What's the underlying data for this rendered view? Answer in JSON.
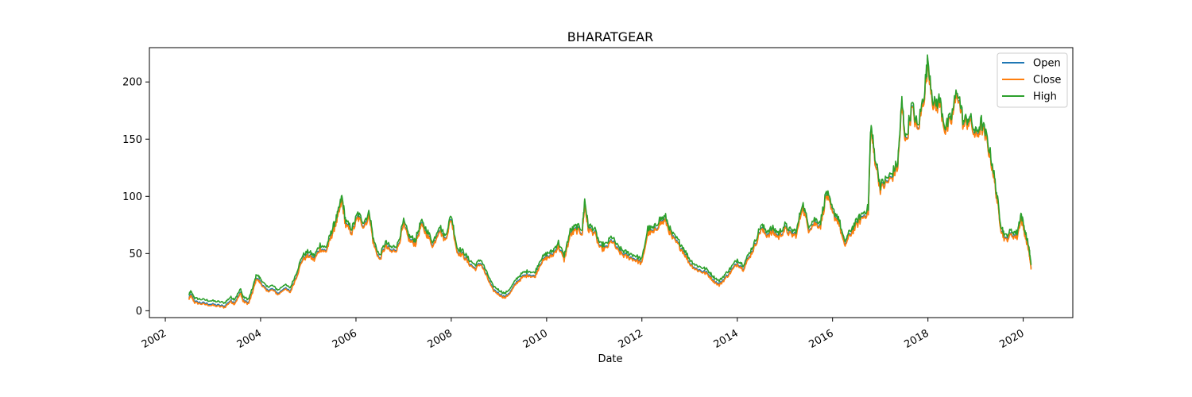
{
  "chart_data": {
    "type": "line",
    "title": "BHARATGEAR",
    "xlabel": "Date",
    "ylabel": "",
    "xlim": [
      "2001-09-01",
      "2021-01-15"
    ],
    "ylim": [
      -6,
      230
    ],
    "x_ticks": [
      "2002",
      "2004",
      "2006",
      "2008",
      "2010",
      "2012",
      "2014",
      "2016",
      "2018",
      "2020"
    ],
    "y_ticks": [
      0,
      50,
      100,
      150,
      200
    ],
    "grid": false,
    "legend_position": "top-right",
    "colors": {
      "Open": "#1f77b4",
      "Close": "#ff7f0e",
      "High": "#2ca02c"
    },
    "series": [
      {
        "name": "High",
        "points": [
          [
            "2002-07-01",
            14
          ],
          [
            "2002-07-15",
            17
          ],
          [
            "2002-08-15",
            11
          ],
          [
            "2002-10-01",
            10
          ],
          [
            "2002-12-01",
            9
          ],
          [
            "2003-02-01",
            8
          ],
          [
            "2003-04-01",
            7
          ],
          [
            "2003-05-15",
            12
          ],
          [
            "2003-06-15",
            10
          ],
          [
            "2003-08-01",
            19
          ],
          [
            "2003-08-20",
            12
          ],
          [
            "2003-10-01",
            10
          ],
          [
            "2003-11-01",
            20
          ],
          [
            "2003-12-01",
            32
          ],
          [
            "2004-01-01",
            28
          ],
          [
            "2004-02-15",
            21
          ],
          [
            "2004-04-01",
            22
          ],
          [
            "2004-05-15",
            18
          ],
          [
            "2004-07-01",
            23
          ],
          [
            "2004-08-15",
            20
          ],
          [
            "2004-10-01",
            33
          ],
          [
            "2004-11-15",
            48
          ],
          [
            "2005-01-01",
            52
          ],
          [
            "2005-02-15",
            48
          ],
          [
            "2005-04-01",
            58
          ],
          [
            "2005-05-15",
            55
          ],
          [
            "2005-06-15",
            65
          ],
          [
            "2005-07-15",
            75
          ],
          [
            "2005-08-15",
            85
          ],
          [
            "2005-09-15",
            100
          ],
          [
            "2005-10-15",
            78
          ],
          [
            "2005-12-01",
            72
          ],
          [
            "2006-01-15",
            85
          ],
          [
            "2006-03-01",
            78
          ],
          [
            "2006-04-15",
            86
          ],
          [
            "2006-05-15",
            62
          ],
          [
            "2006-07-01",
            48
          ],
          [
            "2006-08-15",
            60
          ],
          [
            "2006-10-01",
            55
          ],
          [
            "2006-11-15",
            58
          ],
          [
            "2007-01-01",
            78
          ],
          [
            "2007-02-15",
            65
          ],
          [
            "2007-04-01",
            62
          ],
          [
            "2007-05-15",
            78
          ],
          [
            "2007-07-01",
            70
          ],
          [
            "2007-08-15",
            60
          ],
          [
            "2007-10-01",
            75
          ],
          [
            "2007-11-15",
            65
          ],
          [
            "2008-01-01",
            84
          ],
          [
            "2008-02-15",
            55
          ],
          [
            "2008-04-01",
            52
          ],
          [
            "2008-05-15",
            45
          ],
          [
            "2008-07-01",
            40
          ],
          [
            "2008-08-15",
            45
          ],
          [
            "2008-10-01",
            33
          ],
          [
            "2008-11-15",
            22
          ],
          [
            "2009-01-01",
            18
          ],
          [
            "2009-02-15",
            15
          ],
          [
            "2009-04-01",
            20
          ],
          [
            "2009-05-15",
            28
          ],
          [
            "2009-07-01",
            33
          ],
          [
            "2009-08-15",
            35
          ],
          [
            "2009-10-01",
            33
          ],
          [
            "2009-11-15",
            45
          ],
          [
            "2010-01-01",
            50
          ],
          [
            "2010-02-15",
            52
          ],
          [
            "2010-04-01",
            60
          ],
          [
            "2010-05-15",
            48
          ],
          [
            "2010-07-01",
            70
          ],
          [
            "2010-08-15",
            74
          ],
          [
            "2010-10-01",
            72
          ],
          [
            "2010-10-20",
            97
          ],
          [
            "2010-11-15",
            75
          ],
          [
            "2011-01-01",
            72
          ],
          [
            "2011-02-15",
            58
          ],
          [
            "2011-04-01",
            58
          ],
          [
            "2011-05-15",
            65
          ],
          [
            "2011-07-01",
            56
          ],
          [
            "2011-08-15",
            52
          ],
          [
            "2011-10-01",
            50
          ],
          [
            "2011-11-15",
            48
          ],
          [
            "2012-01-01",
            45
          ],
          [
            "2012-02-15",
            72
          ],
          [
            "2012-04-01",
            72
          ],
          [
            "2012-05-15",
            80
          ],
          [
            "2012-07-01",
            82
          ],
          [
            "2012-08-15",
            68
          ],
          [
            "2012-10-01",
            62
          ],
          [
            "2012-11-15",
            55
          ],
          [
            "2013-01-01",
            45
          ],
          [
            "2013-02-15",
            40
          ],
          [
            "2013-04-01",
            38
          ],
          [
            "2013-05-15",
            36
          ],
          [
            "2013-07-01",
            30
          ],
          [
            "2013-08-15",
            26
          ],
          [
            "2013-10-01",
            32
          ],
          [
            "2013-11-15",
            38
          ],
          [
            "2014-01-01",
            45
          ],
          [
            "2014-02-15",
            40
          ],
          [
            "2014-04-01",
            50
          ],
          [
            "2014-05-15",
            60
          ],
          [
            "2014-07-01",
            75
          ],
          [
            "2014-08-15",
            70
          ],
          [
            "2014-10-01",
            72
          ],
          [
            "2014-11-15",
            68
          ],
          [
            "2015-01-01",
            75
          ],
          [
            "2015-02-15",
            70
          ],
          [
            "2015-04-01",
            70
          ],
          [
            "2015-05-15",
            95
          ],
          [
            "2015-07-01",
            75
          ],
          [
            "2015-08-15",
            80
          ],
          [
            "2015-10-01",
            78
          ],
          [
            "2015-11-15",
            105
          ],
          [
            "2016-01-01",
            88
          ],
          [
            "2016-02-15",
            82
          ],
          [
            "2016-04-01",
            60
          ],
          [
            "2016-05-15",
            70
          ],
          [
            "2016-07-01",
            78
          ],
          [
            "2016-08-15",
            85
          ],
          [
            "2016-10-01",
            90
          ],
          [
            "2016-10-20",
            163
          ],
          [
            "2016-11-15",
            140
          ],
          [
            "2017-01-01",
            110
          ],
          [
            "2017-02-15",
            115
          ],
          [
            "2017-04-01",
            120
          ],
          [
            "2017-05-15",
            130
          ],
          [
            "2017-06-15",
            183
          ],
          [
            "2017-07-15",
            150
          ],
          [
            "2017-09-01",
            180
          ],
          [
            "2017-10-15",
            160
          ],
          [
            "2017-12-01",
            190
          ],
          [
            "2018-01-01",
            220
          ],
          [
            "2018-02-15",
            180
          ],
          [
            "2018-04-01",
            185
          ],
          [
            "2018-05-15",
            160
          ],
          [
            "2018-07-01",
            170
          ],
          [
            "2018-08-15",
            195
          ],
          [
            "2018-10-01",
            165
          ],
          [
            "2018-11-15",
            170
          ],
          [
            "2019-01-01",
            155
          ],
          [
            "2019-02-15",
            165
          ],
          [
            "2019-04-01",
            150
          ],
          [
            "2019-05-15",
            125
          ],
          [
            "2019-06-15",
            100
          ],
          [
            "2019-07-15",
            75
          ],
          [
            "2019-08-15",
            65
          ],
          [
            "2019-10-01",
            70
          ],
          [
            "2019-11-15",
            68
          ],
          [
            "2019-12-15",
            85
          ],
          [
            "2020-01-15",
            70
          ],
          [
            "2020-02-15",
            55
          ],
          [
            "2020-03-01",
            40
          ]
        ]
      },
      {
        "name": "Close",
        "offset_from_high": -4
      },
      {
        "name": "Open",
        "offset_from_high": -3
      }
    ]
  }
}
